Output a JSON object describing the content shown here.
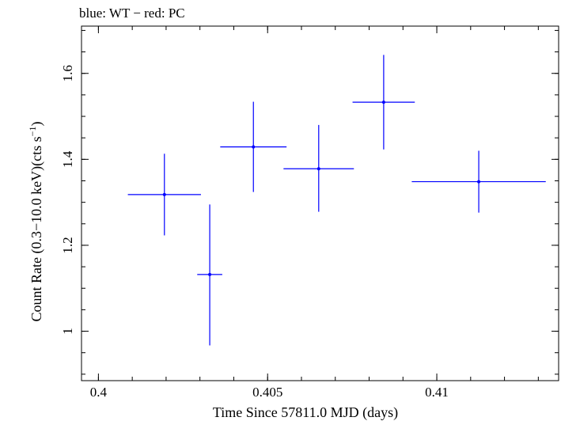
{
  "chart_data": {
    "type": "scatter",
    "title": "blue: WT − red: PC",
    "xlabel": "Time Since 57811.0 MJD (days)",
    "ylabel_main": "Count Rate (0.3−10.0 keV)(cts s",
    "ylabel_sup": "−1",
    "ylabel_end": ")",
    "xlim": [
      0.3995,
      0.4136
    ],
    "ylim": [
      0.885,
      1.71
    ],
    "x_ticks": [
      {
        "value": 0.4,
        "label": "0.4"
      },
      {
        "value": 0.405,
        "label": "0.405"
      },
      {
        "value": 0.41,
        "label": "0.41"
      }
    ],
    "y_ticks": [
      {
        "value": 1.0,
        "label": "1"
      },
      {
        "value": 1.2,
        "label": "1.2"
      },
      {
        "value": 1.4,
        "label": "1.4"
      },
      {
        "value": 1.6,
        "label": "1.6"
      }
    ],
    "x_minor_step": 0.001,
    "y_minor_step": 0.05,
    "series": [
      {
        "name": "WT",
        "color": "#0000ff",
        "points": [
          {
            "x": 0.40195,
            "xerr": 0.00108,
            "y": 1.318,
            "yerr_lo": 0.095,
            "yerr_hi": 0.095
          },
          {
            "x": 0.40329,
            "xerr": 0.00037,
            "y": 1.132,
            "yerr_lo": 0.165,
            "yerr_hi": 0.163
          },
          {
            "x": 0.40458,
            "xerr": 0.00098,
            "y": 1.429,
            "yerr_lo": 0.105,
            "yerr_hi": 0.105
          },
          {
            "x": 0.40651,
            "xerr": 0.00104,
            "y": 1.378,
            "yerr_lo": 0.1,
            "yerr_hi": 0.102
          },
          {
            "x": 0.40843,
            "xerr": 0.00092,
            "y": 1.533,
            "yerr_lo": 0.11,
            "yerr_hi": 0.11
          },
          {
            "x": 0.41124,
            "xerr": 0.00198,
            "y": 1.348,
            "yerr_lo": 0.072,
            "yerr_hi": 0.072
          }
        ]
      }
    ]
  }
}
